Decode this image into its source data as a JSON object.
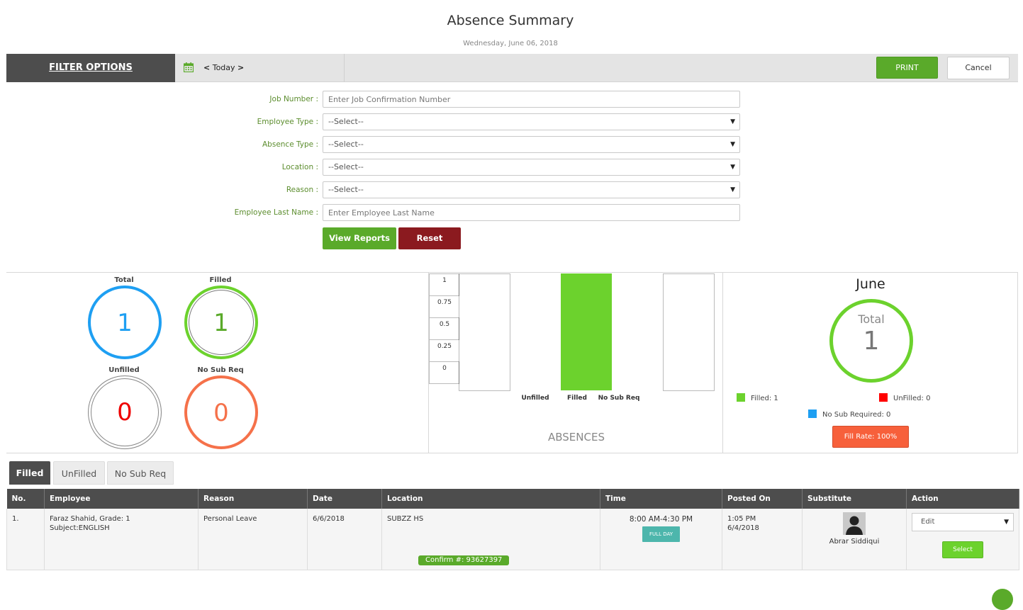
{
  "page": {
    "title": "Absence Summary",
    "date": "Wednesday, June 06, 2018"
  },
  "toolbar": {
    "filter_options": "FILTER OPTIONS",
    "today_label": "Today",
    "prev_arrow": "<",
    "next_arrow": ">",
    "print_label": "PRINT",
    "cancel_label": "Cancel"
  },
  "filters": {
    "job_number_label": "Job Number :",
    "job_number_placeholder": "Enter Job Confirmation Number",
    "employee_type_label": "Employee Type :",
    "employee_type_value": "--Select--",
    "absence_type_label": "Absence Type :",
    "absence_type_value": "--Select--",
    "location_label": "Location :",
    "location_value": "--Select--",
    "reason_label": "Reason :",
    "reason_value": "--Select--",
    "last_name_label": "Employee Last Name :",
    "last_name_placeholder": "Enter Employee Last Name",
    "view_reports_label": "View Reports",
    "reset_label": "Reset"
  },
  "stats": {
    "total_label": "Total",
    "total_value": "1",
    "filled_label": "Filled",
    "filled_value": "1",
    "unfilled_label": "Unfilled",
    "unfilled_value": "0",
    "nosub_label": "No Sub Req",
    "nosub_value": "0"
  },
  "chart_data": {
    "type": "bar",
    "title": "ABSENCES",
    "categories": [
      "Unfilled",
      "Filled",
      "No Sub Req"
    ],
    "values": [
      0,
      1,
      0
    ],
    "yticks": [
      "1",
      "0.75",
      "0.5",
      "0.25",
      "0"
    ],
    "ylim": [
      0,
      1
    ],
    "colors": {
      "bar": "#6cd22d"
    }
  },
  "month": {
    "title": "June",
    "total_label": "Total",
    "total_value": "1",
    "legend_filled": "Filled: 1",
    "legend_unfilled": "UnFilled: 0",
    "legend_nosub": "No Sub Required: 0",
    "fill_rate": "Fill Rate: 100%",
    "colors": {
      "filled": "#6cd22d",
      "unfilled": "#ff0000",
      "nosub": "#1e9ff2"
    }
  },
  "tabs": [
    {
      "label": "Filled",
      "active": true
    },
    {
      "label": "UnFilled",
      "active": false
    },
    {
      "label": "No Sub Req",
      "active": false
    }
  ],
  "table": {
    "headers": [
      "No.",
      "Employee",
      "Reason",
      "Date",
      "Location",
      "Time",
      "Posted On",
      "Substitute",
      "Action"
    ],
    "rows": [
      {
        "no": "1.",
        "employee_line1": "Faraz Shahid, Grade: 1",
        "employee_line2": "Subject:ENGLISH",
        "reason": "Personal Leave",
        "date": "6/6/2018",
        "location": "SUBZZ HS",
        "confirm": "Confirm #: 93627397",
        "time": "8:00 AM-4:30 PM",
        "duration": "FULL DAY",
        "posted_time": "1:05 PM",
        "posted_date": "6/4/2018",
        "substitute": "Abrar Siddiqui",
        "action_value": "Edit",
        "select_label": "Select"
      }
    ]
  }
}
